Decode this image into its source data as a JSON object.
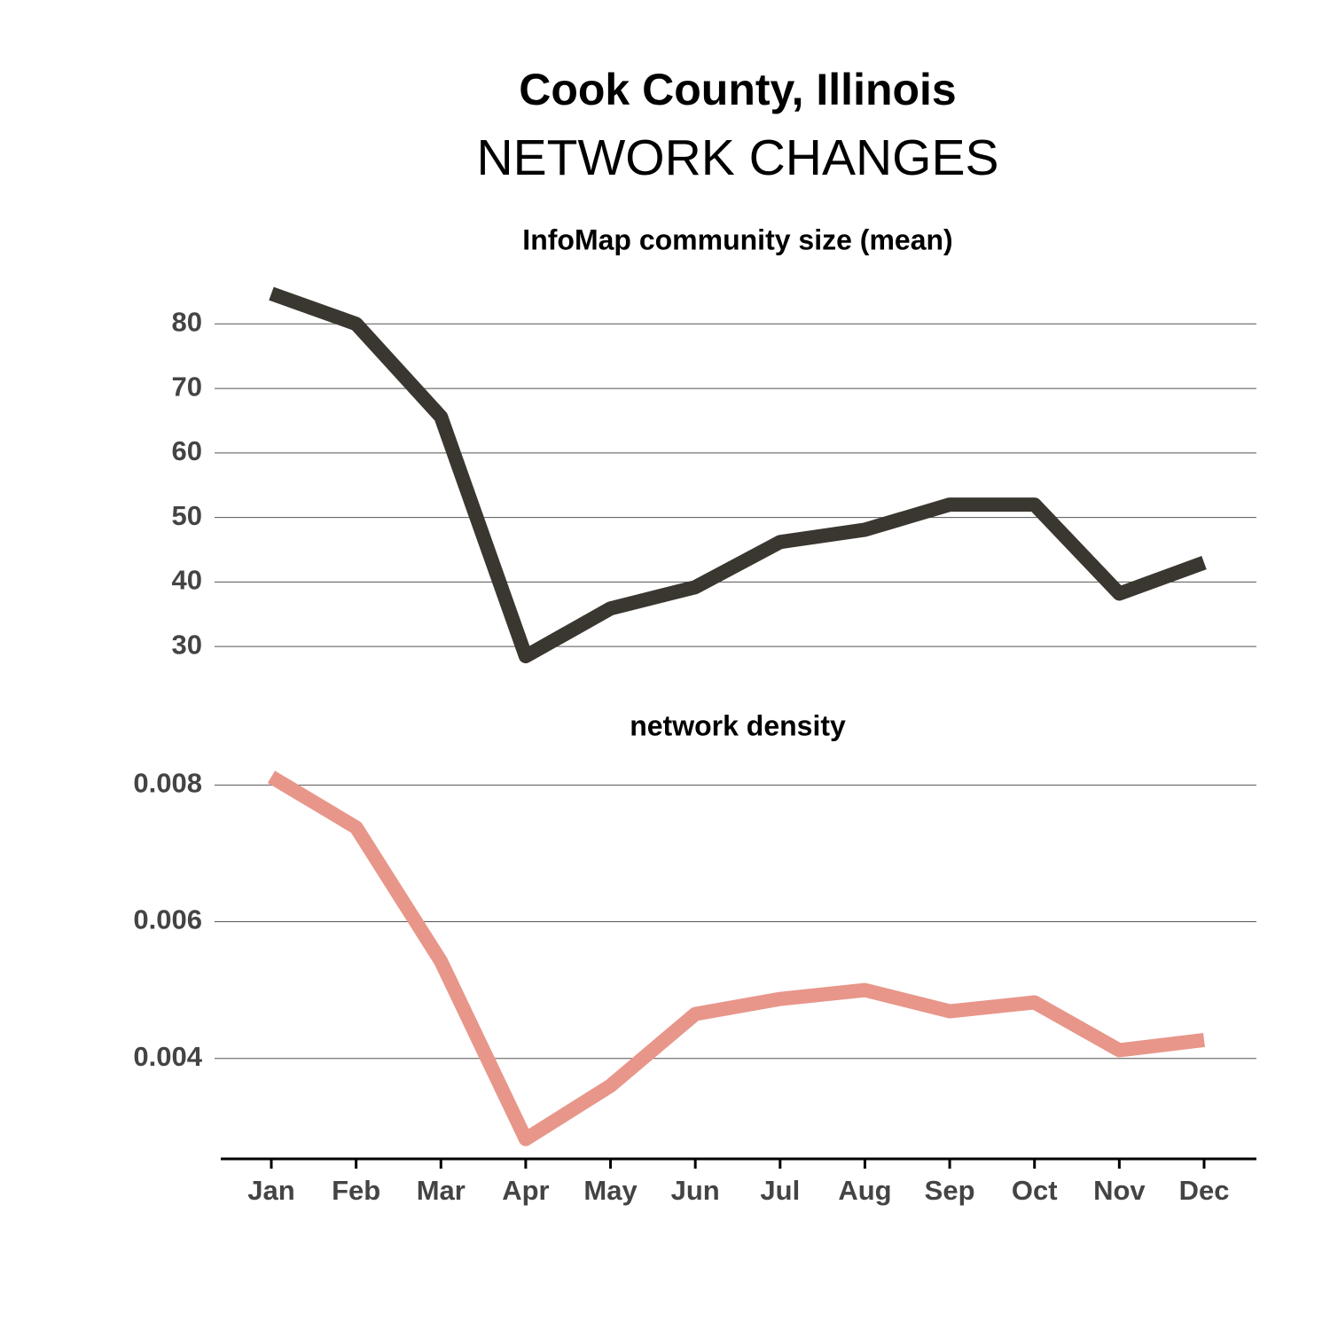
{
  "header": {
    "title": "Cook County, Illinois",
    "subtitle": "NETWORK CHANGES"
  },
  "chart_data": [
    {
      "type": "line",
      "title": "InfoMap community size (mean)",
      "color": "#3a3730",
      "values": [
        84.7,
        80,
        65.6,
        28.5,
        35.9,
        39.2,
        46.2,
        48.1,
        52,
        52,
        38.2,
        43
      ],
      "ylim": [
        27,
        86.5
      ],
      "yticks": [
        30,
        40,
        50,
        60,
        70,
        80
      ],
      "grid": true
    },
    {
      "type": "line",
      "title": "network density",
      "color": "#e8968a",
      "categories": [
        "Jan",
        "Feb",
        "Mar",
        "Apr",
        "May",
        "Jun",
        "Jul",
        "Aug",
        "Sep",
        "Oct",
        "Nov",
        "Dec"
      ],
      "values": [
        0.00812,
        0.00738,
        0.00542,
        0.00282,
        0.0036,
        0.00465,
        0.00487,
        0.005,
        0.00469,
        0.00482,
        0.00412,
        0.00427
      ],
      "ylim": [
        0.00253,
        0.0082
      ],
      "yticks": [
        0.004,
        0.006,
        0.008
      ],
      "grid": true
    }
  ]
}
